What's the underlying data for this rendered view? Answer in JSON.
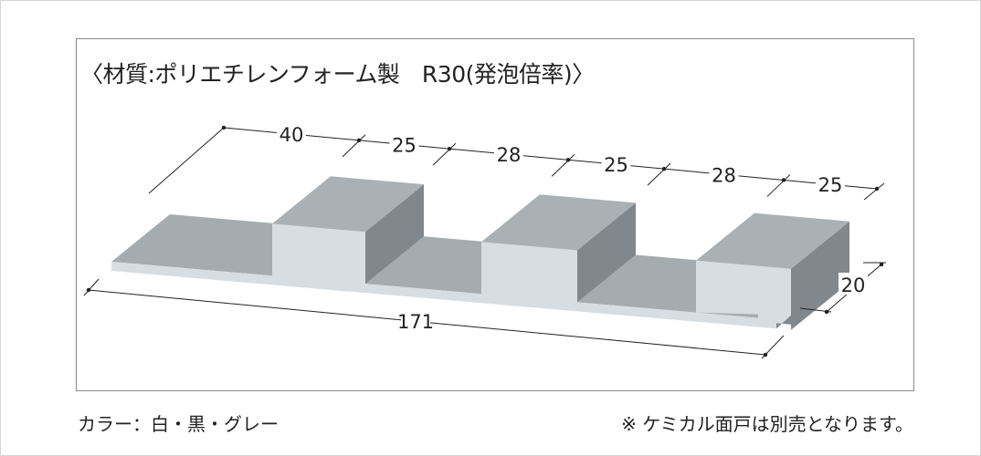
{
  "title": "〈材質:ポリエチレンフォーム製　R30(発泡倍率)〉",
  "dimensions": {
    "top": [
      "40",
      "25",
      "28",
      "25",
      "28",
      "25"
    ],
    "length": "171",
    "height": "20"
  },
  "colors": {
    "top_face": "#a9b1b5",
    "front_face": "#d6dee3",
    "side_face": "#80888d",
    "floor": "#a4acb0"
  },
  "footer": {
    "colors_note": "カラー：白・黒・グレー",
    "sold_separately": "※ ケミカル面戸は別売となります。"
  }
}
